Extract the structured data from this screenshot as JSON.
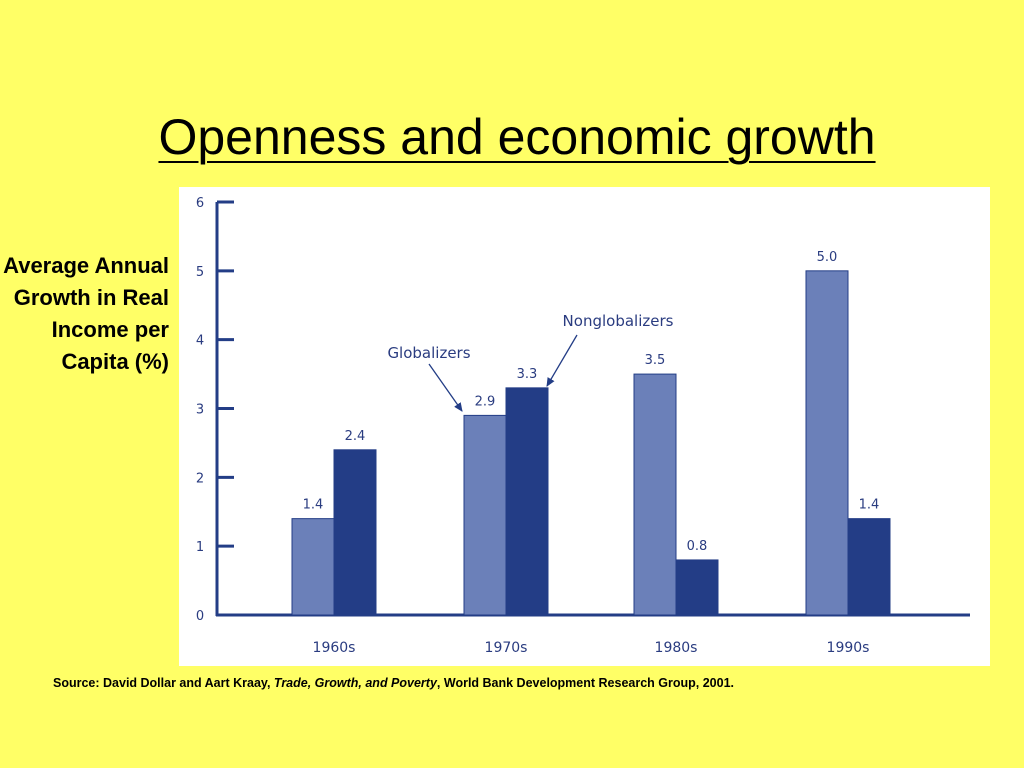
{
  "slide": {
    "title": "Openness and economic growth",
    "ylabel": "Average Annual Growth in Real Income per Capita (%)"
  },
  "source": {
    "prefix": "Source: David Dollar and Aart Kraay, ",
    "book": "Trade, Growth, and Poverty",
    "suffix": ", World Bank Development Research Group, 2001."
  },
  "colors": {
    "background": "#ffff66",
    "globalizers": "#6b80b9",
    "nonglobalizers": "#233d86",
    "axis": "#233d86",
    "text": "#2a3c80"
  },
  "chart_data": {
    "type": "bar",
    "title": "Openness and economic growth",
    "ylabel": "Average Annual Growth in Real Income per Capita (%)",
    "xlabel": "",
    "categories": [
      "1960s",
      "1970s",
      "1980s",
      "1990s"
    ],
    "series": [
      {
        "name": "Globalizers",
        "values": [
          1.4,
          2.9,
          3.5,
          5.0
        ],
        "labels": [
          "1.4",
          "2.9",
          "3.5",
          "5.0"
        ]
      },
      {
        "name": "Nonglobalizers",
        "values": [
          2.4,
          3.3,
          0.8,
          1.4
        ],
        "labels": [
          "2.4",
          "3.3",
          "0.8",
          "1.4"
        ]
      }
    ],
    "ylim": [
      0,
      6
    ],
    "yticks": [
      "0",
      "1",
      "2",
      "3",
      "4",
      "5",
      "6"
    ],
    "grid": false,
    "annotations": [
      {
        "text": "Globalizers",
        "points_to": {
          "series": 0,
          "category": "1970s"
        }
      },
      {
        "text": "Nonglobalizers",
        "points_to": {
          "series": 1,
          "category": "1970s"
        }
      }
    ]
  }
}
